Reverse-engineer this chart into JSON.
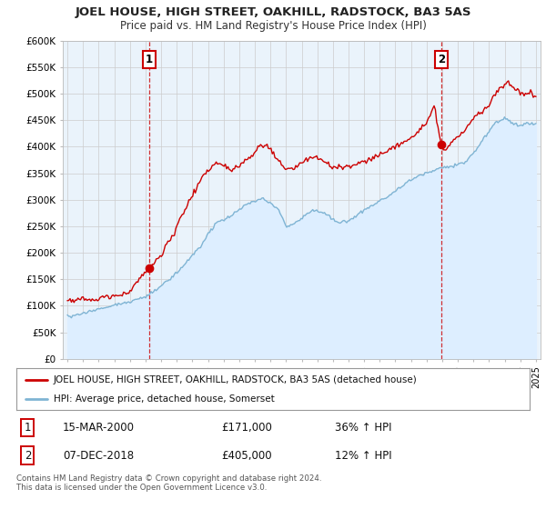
{
  "title": "JOEL HOUSE, HIGH STREET, OAKHILL, RADSTOCK, BA3 5AS",
  "subtitle": "Price paid vs. HM Land Registry's House Price Index (HPI)",
  "ylabel_values": [
    "£0",
    "£50K",
    "£100K",
    "£150K",
    "£200K",
    "£250K",
    "£300K",
    "£350K",
    "£400K",
    "£450K",
    "£500K",
    "£550K",
    "£600K"
  ],
  "ylim": [
    0,
    600000
  ],
  "yticks": [
    0,
    50000,
    100000,
    150000,
    200000,
    250000,
    300000,
    350000,
    400000,
    450000,
    500000,
    550000,
    600000
  ],
  "legend_house": "JOEL HOUSE, HIGH STREET, OAKHILL, RADSTOCK, BA3 5AS (detached house)",
  "legend_hpi": "HPI: Average price, detached house, Somerset",
  "transaction1_date": "15-MAR-2000",
  "transaction1_price": "£171,000",
  "transaction1_hpi": "36% ↑ HPI",
  "transaction2_date": "07-DEC-2018",
  "transaction2_price": "£405,000",
  "transaction2_hpi": "12% ↑ HPI",
  "footer": "Contains HM Land Registry data © Crown copyright and database right 2024.\nThis data is licensed under the Open Government Licence v3.0.",
  "house_color": "#cc0000",
  "hpi_color": "#7fb4d4",
  "hpi_fill_color": "#ddeeff",
  "point1_x": 2000.21,
  "point1_y": 171000,
  "point2_x": 2018.93,
  "point2_y": 405000,
  "vline1_x": 2000.21,
  "vline2_x": 2018.93,
  "xlim_left": 1994.7,
  "xlim_right": 2025.3,
  "background_color": "#ffffff",
  "grid_color": "#cccccc",
  "chart_bg": "#eaf3fb"
}
